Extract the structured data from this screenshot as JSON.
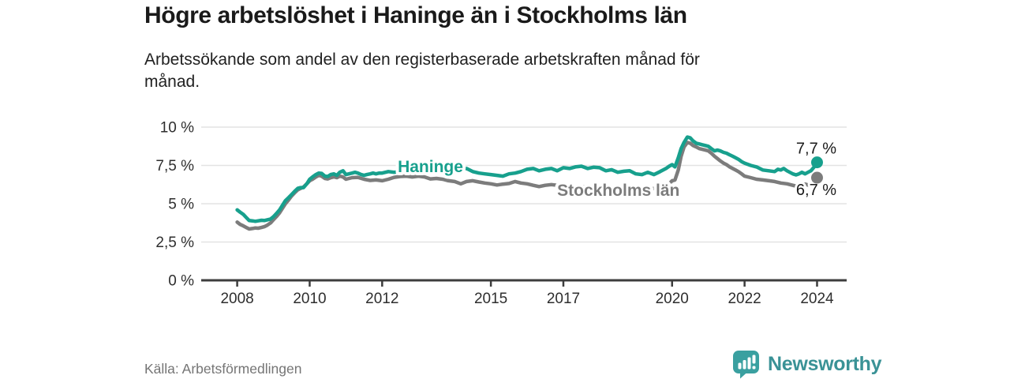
{
  "header": {
    "title": "Högre arbetslöshet i Haninge än i Stockholms län",
    "subtitle_line1": "Arbetssökande som andel av den registerbaserade arbetskraften månad för",
    "subtitle_line2": "månad."
  },
  "footer": {
    "source": "Källa: Arbetsförmedlingen",
    "brand_name": "Newsworthy"
  },
  "colors": {
    "haninge_teal": "#17a08d",
    "stockholm_gray": "#7c7c7c",
    "grid": "#e3e3e3",
    "axis": "#3d3d3d",
    "label_text": "#1a1a1a",
    "muted_text": "#757575",
    "brand_teal": "#3aa0a0",
    "brand_text_teal": "#3a9296"
  },
  "chart_data": {
    "type": "line",
    "title": "Högre arbetslöshet i Haninge än i Stockholms län",
    "subtitle": "Arbetssökande som andel av den registerbaserade arbetskraften månad för månad.",
    "source": "Källa: Arbetsförmedlingen",
    "unit": "%",
    "xlim": [
      2007.0,
      2024.8
    ],
    "ylim": [
      0,
      10
    ],
    "grid": "horizontal",
    "legend_position": "inline-labels",
    "y_ticks": [
      {
        "label": "0 %",
        "value": 0
      },
      {
        "label": "2,5 %",
        "value": 2.5
      },
      {
        "label": "5 %",
        "value": 5
      },
      {
        "label": "7,5 %",
        "value": 7.5
      },
      {
        "label": "10 %",
        "value": 10
      }
    ],
    "x_ticks": [
      {
        "label": "2008",
        "year": 2008
      },
      {
        "label": "2010",
        "year": 2010
      },
      {
        "label": "2012",
        "year": 2012
      },
      {
        "label": "2015",
        "year": 2015
      },
      {
        "label": "2017",
        "year": 2017
      },
      {
        "label": "2020",
        "year": 2020
      },
      {
        "label": "2022",
        "year": 2022
      },
      {
        "label": "2024",
        "year": 2024
      }
    ],
    "series": [
      {
        "name": "Stockholms län",
        "color": "#7c7c7c",
        "end_label": "6,7 %",
        "end_value": 6.7,
        "end_label_position": "below",
        "name_label_at": {
          "year": 2016.83,
          "value": 5.52
        },
        "points": [
          [
            2008.0,
            3.8
          ],
          [
            2008.08,
            3.65
          ],
          [
            2008.17,
            3.55
          ],
          [
            2008.25,
            3.45
          ],
          [
            2008.33,
            3.35
          ],
          [
            2008.42,
            3.38
          ],
          [
            2008.5,
            3.42
          ],
          [
            2008.58,
            3.4
          ],
          [
            2008.67,
            3.45
          ],
          [
            2008.75,
            3.5
          ],
          [
            2008.83,
            3.6
          ],
          [
            2008.92,
            3.75
          ],
          [
            2009.0,
            3.95
          ],
          [
            2009.08,
            4.15
          ],
          [
            2009.17,
            4.4
          ],
          [
            2009.25,
            4.7
          ],
          [
            2009.33,
            5.0
          ],
          [
            2009.42,
            5.25
          ],
          [
            2009.5,
            5.5
          ],
          [
            2009.58,
            5.7
          ],
          [
            2009.67,
            5.9
          ],
          [
            2009.75,
            6.0
          ],
          [
            2009.83,
            6.1
          ],
          [
            2009.92,
            6.3
          ],
          [
            2010.0,
            6.5
          ],
          [
            2010.08,
            6.6
          ],
          [
            2010.17,
            6.75
          ],
          [
            2010.25,
            6.85
          ],
          [
            2010.33,
            6.8
          ],
          [
            2010.42,
            6.65
          ],
          [
            2010.5,
            6.62
          ],
          [
            2010.58,
            6.7
          ],
          [
            2010.67,
            6.75
          ],
          [
            2010.75,
            6.7
          ],
          [
            2010.83,
            6.8
          ],
          [
            2010.92,
            6.75
          ],
          [
            2011.0,
            6.6
          ],
          [
            2011.17,
            6.7
          ],
          [
            2011.33,
            6.72
          ],
          [
            2011.5,
            6.6
          ],
          [
            2011.67,
            6.52
          ],
          [
            2011.83,
            6.55
          ],
          [
            2012.0,
            6.5
          ],
          [
            2012.17,
            6.6
          ],
          [
            2012.33,
            6.72
          ],
          [
            2012.5,
            6.78
          ],
          [
            2012.67,
            6.8
          ],
          [
            2012.83,
            6.75
          ],
          [
            2013.0,
            6.8
          ],
          [
            2013.17,
            6.75
          ],
          [
            2013.33,
            6.62
          ],
          [
            2013.5,
            6.65
          ],
          [
            2013.67,
            6.6
          ],
          [
            2013.83,
            6.5
          ],
          [
            2014.0,
            6.45
          ],
          [
            2014.17,
            6.3
          ],
          [
            2014.33,
            6.45
          ],
          [
            2014.5,
            6.5
          ],
          [
            2014.67,
            6.42
          ],
          [
            2014.83,
            6.35
          ],
          [
            2015.0,
            6.3
          ],
          [
            2015.17,
            6.22
          ],
          [
            2015.33,
            6.28
          ],
          [
            2015.5,
            6.32
          ],
          [
            2015.67,
            6.45
          ],
          [
            2015.83,
            6.35
          ],
          [
            2016.0,
            6.3
          ],
          [
            2016.17,
            6.2
          ],
          [
            2016.33,
            6.12
          ],
          [
            2016.5,
            6.2
          ],
          [
            2016.67,
            6.25
          ],
          [
            2016.83,
            6.2
          ],
          [
            2017.0,
            6.2
          ],
          [
            2017.25,
            6.15
          ],
          [
            2017.5,
            6.12
          ],
          [
            2017.75,
            6.1
          ],
          [
            2018.0,
            6.1
          ],
          [
            2018.25,
            6.05
          ],
          [
            2018.5,
            6.0
          ],
          [
            2018.75,
            5.98
          ],
          [
            2019.0,
            5.95
          ],
          [
            2019.25,
            5.95
          ],
          [
            2019.5,
            6.0
          ],
          [
            2019.75,
            6.1
          ],
          [
            2019.92,
            6.3
          ],
          [
            2020.0,
            6.5
          ],
          [
            2020.08,
            6.55
          ],
          [
            2020.17,
            7.2
          ],
          [
            2020.25,
            8.1
          ],
          [
            2020.33,
            8.7
          ],
          [
            2020.42,
            9.0
          ],
          [
            2020.5,
            8.95
          ],
          [
            2020.58,
            8.8
          ],
          [
            2020.67,
            8.7
          ],
          [
            2020.75,
            8.6
          ],
          [
            2020.83,
            8.55
          ],
          [
            2020.92,
            8.5
          ],
          [
            2021.0,
            8.45
          ],
          [
            2021.08,
            8.3
          ],
          [
            2021.17,
            8.1
          ],
          [
            2021.25,
            7.95
          ],
          [
            2021.33,
            7.8
          ],
          [
            2021.42,
            7.65
          ],
          [
            2021.5,
            7.55
          ],
          [
            2021.58,
            7.42
          ],
          [
            2021.67,
            7.3
          ],
          [
            2021.75,
            7.2
          ],
          [
            2021.83,
            7.1
          ],
          [
            2021.92,
            6.95
          ],
          [
            2022.0,
            6.8
          ],
          [
            2022.17,
            6.7
          ],
          [
            2022.33,
            6.6
          ],
          [
            2022.5,
            6.55
          ],
          [
            2022.67,
            6.5
          ],
          [
            2022.83,
            6.45
          ],
          [
            2023.0,
            6.35
          ],
          [
            2023.17,
            6.3
          ],
          [
            2023.33,
            6.2
          ],
          [
            2023.42,
            6.15
          ],
          [
            2023.5,
            6.12
          ],
          [
            2023.58,
            6.18
          ],
          [
            2023.67,
            6.28
          ],
          [
            2023.75,
            6.22
          ],
          [
            2023.83,
            6.25
          ],
          [
            2023.92,
            6.4
          ],
          [
            2024.0,
            6.7
          ]
        ]
      },
      {
        "name": "Haninge",
        "color": "#17a08d",
        "end_label": "7,7 %",
        "end_value": 7.7,
        "end_label_position": "above",
        "name_label_at": {
          "year": 2012.43,
          "value": 7.06
        },
        "points": [
          [
            2008.0,
            4.6
          ],
          [
            2008.08,
            4.45
          ],
          [
            2008.17,
            4.3
          ],
          [
            2008.25,
            4.1
          ],
          [
            2008.33,
            3.9
          ],
          [
            2008.42,
            3.88
          ],
          [
            2008.5,
            3.85
          ],
          [
            2008.58,
            3.88
          ],
          [
            2008.67,
            3.92
          ],
          [
            2008.75,
            3.9
          ],
          [
            2008.83,
            3.95
          ],
          [
            2008.92,
            4.0
          ],
          [
            2009.0,
            4.15
          ],
          [
            2009.08,
            4.35
          ],
          [
            2009.17,
            4.6
          ],
          [
            2009.25,
            4.9
          ],
          [
            2009.33,
            5.2
          ],
          [
            2009.42,
            5.4
          ],
          [
            2009.5,
            5.6
          ],
          [
            2009.58,
            5.8
          ],
          [
            2009.67,
            6.0
          ],
          [
            2009.75,
            6.05
          ],
          [
            2009.83,
            6.05
          ],
          [
            2009.92,
            6.3
          ],
          [
            2010.0,
            6.6
          ],
          [
            2010.08,
            6.75
          ],
          [
            2010.17,
            6.9
          ],
          [
            2010.25,
            7.0
          ],
          [
            2010.33,
            6.98
          ],
          [
            2010.42,
            6.8
          ],
          [
            2010.5,
            6.78
          ],
          [
            2010.58,
            6.9
          ],
          [
            2010.67,
            6.95
          ],
          [
            2010.75,
            6.85
          ],
          [
            2010.83,
            7.05
          ],
          [
            2010.92,
            7.15
          ],
          [
            2011.0,
            6.9
          ],
          [
            2011.08,
            6.95
          ],
          [
            2011.17,
            7.0
          ],
          [
            2011.25,
            7.05
          ],
          [
            2011.33,
            7.0
          ],
          [
            2011.42,
            6.9
          ],
          [
            2011.5,
            6.85
          ],
          [
            2011.58,
            6.9
          ],
          [
            2011.67,
            6.95
          ],
          [
            2011.75,
            7.0
          ],
          [
            2011.83,
            6.95
          ],
          [
            2011.92,
            7.0
          ],
          [
            2012.0,
            7.0
          ],
          [
            2012.17,
            7.1
          ],
          [
            2012.33,
            7.05
          ],
          [
            2012.5,
            7.1
          ],
          [
            2012.67,
            7.15
          ],
          [
            2012.83,
            7.1
          ],
          [
            2013.0,
            7.2
          ],
          [
            2013.25,
            7.15
          ],
          [
            2013.5,
            7.2
          ],
          [
            2013.75,
            7.1
          ],
          [
            2014.0,
            7.1
          ],
          [
            2014.17,
            7.25
          ],
          [
            2014.33,
            7.3
          ],
          [
            2014.5,
            7.1
          ],
          [
            2014.67,
            7.0
          ],
          [
            2014.83,
            6.95
          ],
          [
            2015.0,
            6.9
          ],
          [
            2015.17,
            6.85
          ],
          [
            2015.33,
            6.8
          ],
          [
            2015.5,
            6.95
          ],
          [
            2015.67,
            7.0
          ],
          [
            2015.83,
            7.1
          ],
          [
            2016.0,
            7.25
          ],
          [
            2016.17,
            7.3
          ],
          [
            2016.33,
            7.15
          ],
          [
            2016.5,
            7.25
          ],
          [
            2016.67,
            7.3
          ],
          [
            2016.83,
            7.15
          ],
          [
            2017.0,
            7.35
          ],
          [
            2017.17,
            7.3
          ],
          [
            2017.33,
            7.4
          ],
          [
            2017.5,
            7.45
          ],
          [
            2017.67,
            7.3
          ],
          [
            2017.83,
            7.38
          ],
          [
            2018.0,
            7.35
          ],
          [
            2018.17,
            7.15
          ],
          [
            2018.33,
            7.22
          ],
          [
            2018.5,
            7.05
          ],
          [
            2018.67,
            7.12
          ],
          [
            2018.83,
            7.15
          ],
          [
            2019.0,
            6.95
          ],
          [
            2019.17,
            6.9
          ],
          [
            2019.33,
            7.05
          ],
          [
            2019.5,
            6.9
          ],
          [
            2019.67,
            7.1
          ],
          [
            2019.83,
            7.3
          ],
          [
            2019.92,
            7.45
          ],
          [
            2020.0,
            7.55
          ],
          [
            2020.08,
            7.4
          ],
          [
            2020.17,
            8.0
          ],
          [
            2020.25,
            8.6
          ],
          [
            2020.33,
            9.0
          ],
          [
            2020.42,
            9.35
          ],
          [
            2020.5,
            9.3
          ],
          [
            2020.58,
            9.1
          ],
          [
            2020.67,
            8.95
          ],
          [
            2020.75,
            8.9
          ],
          [
            2020.83,
            8.85
          ],
          [
            2020.92,
            8.8
          ],
          [
            2021.0,
            8.75
          ],
          [
            2021.08,
            8.6
          ],
          [
            2021.17,
            8.45
          ],
          [
            2021.25,
            8.5
          ],
          [
            2021.33,
            8.45
          ],
          [
            2021.42,
            8.35
          ],
          [
            2021.5,
            8.3
          ],
          [
            2021.58,
            8.2
          ],
          [
            2021.67,
            8.1
          ],
          [
            2021.75,
            8.0
          ],
          [
            2021.83,
            7.9
          ],
          [
            2021.92,
            7.75
          ],
          [
            2022.0,
            7.65
          ],
          [
            2022.17,
            7.5
          ],
          [
            2022.33,
            7.4
          ],
          [
            2022.5,
            7.2
          ],
          [
            2022.67,
            7.15
          ],
          [
            2022.83,
            7.1
          ],
          [
            2022.92,
            7.25
          ],
          [
            2023.0,
            7.2
          ],
          [
            2023.08,
            7.3
          ],
          [
            2023.17,
            7.15
          ],
          [
            2023.33,
            6.95
          ],
          [
            2023.42,
            6.88
          ],
          [
            2023.5,
            6.95
          ],
          [
            2023.58,
            7.05
          ],
          [
            2023.67,
            6.95
          ],
          [
            2023.75,
            7.05
          ],
          [
            2023.83,
            7.15
          ],
          [
            2023.92,
            7.4
          ],
          [
            2024.0,
            7.7
          ]
        ]
      }
    ]
  }
}
